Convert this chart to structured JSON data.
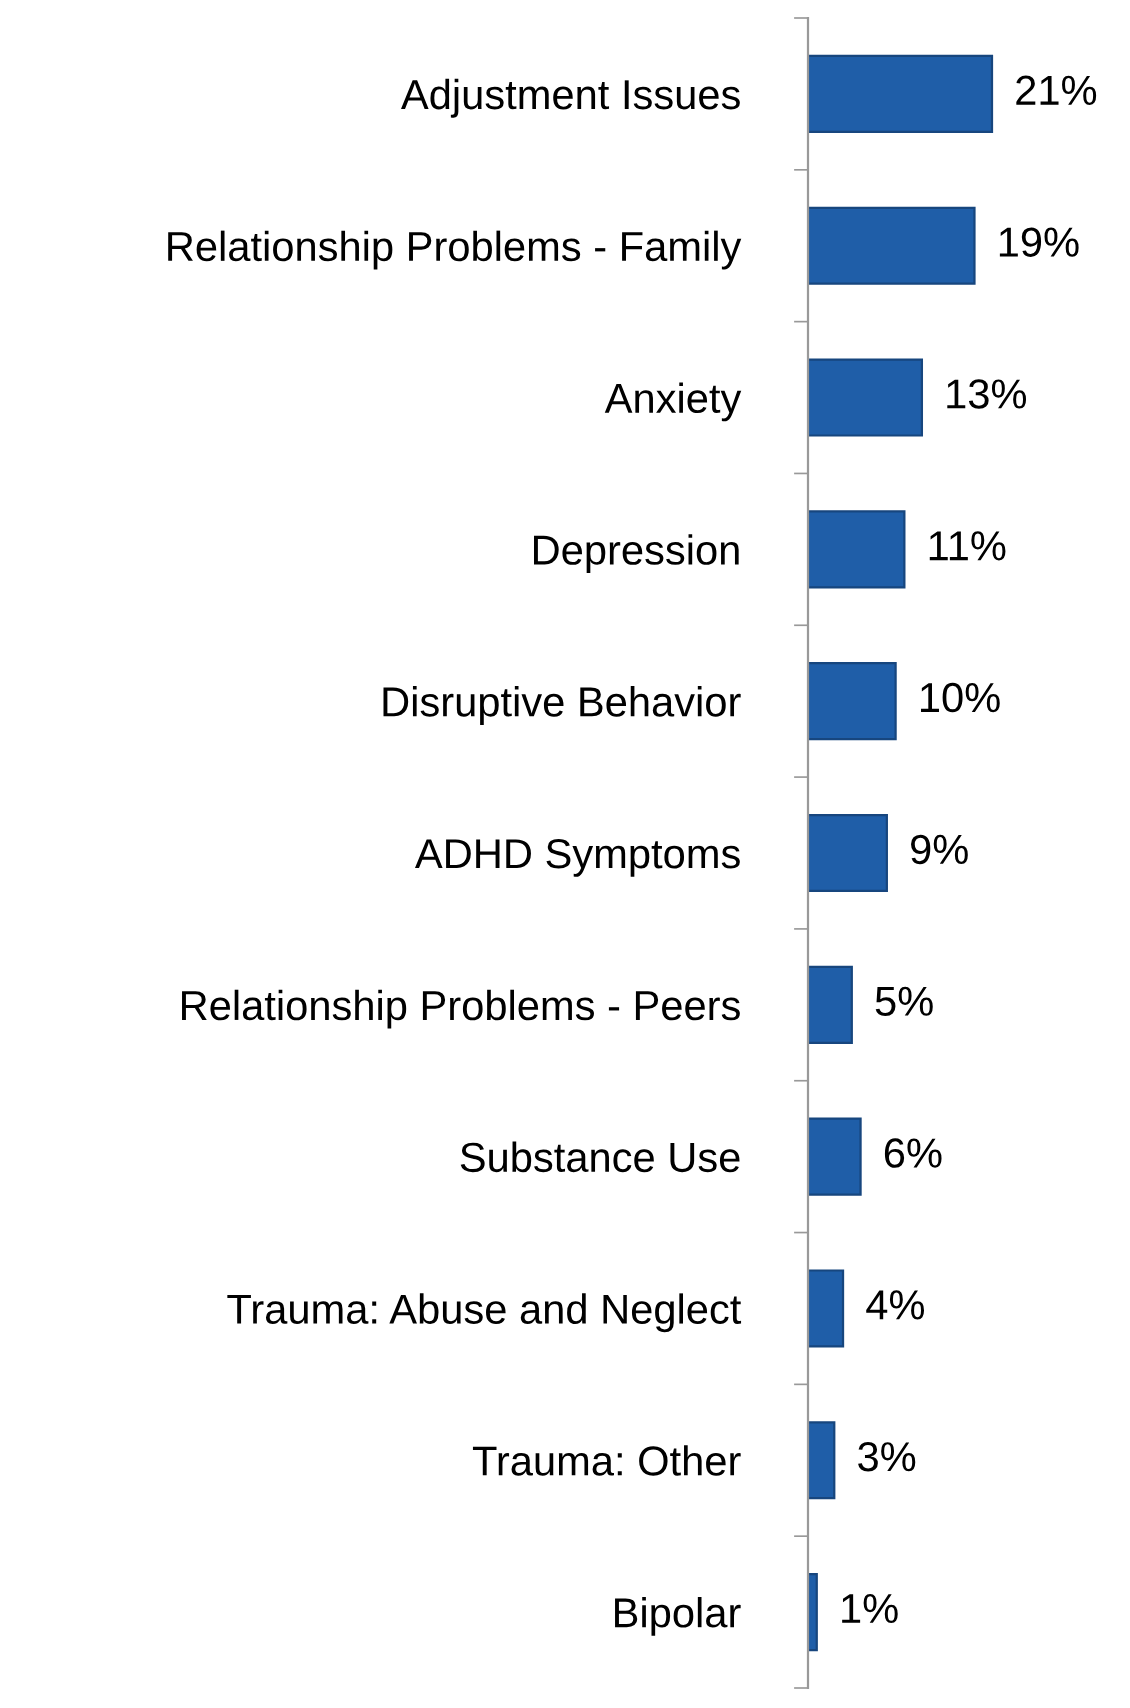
{
  "chart_data": {
    "type": "bar",
    "orientation": "horizontal",
    "categories": [
      "Adjustment Issues",
      "Relationship Problems - Family",
      "Anxiety",
      "Depression",
      "Disruptive Behavior",
      "ADHD Symptoms",
      "Relationship Problems - Peers",
      "Substance Use",
      "Trauma: Abuse and Neglect",
      "Trauma: Other",
      "Bipolar"
    ],
    "values": [
      21,
      19,
      13,
      11,
      10,
      9,
      5,
      6,
      4,
      3,
      1
    ],
    "value_labels": [
      "21%",
      "19%",
      "13%",
      "11%",
      "10%",
      "9%",
      "5%",
      "6%",
      "4%",
      "3%",
      "1%"
    ],
    "color": "#1f5ea8",
    "grid": false,
    "legend": false
  }
}
